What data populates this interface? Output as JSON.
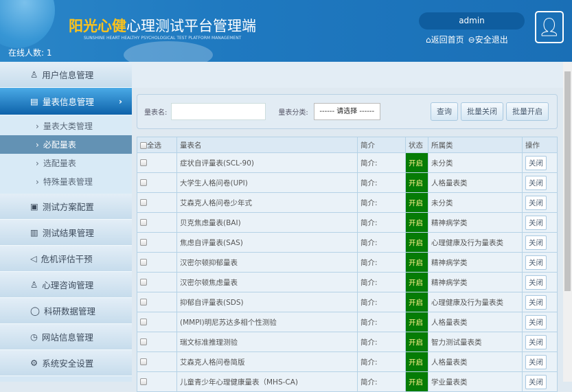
{
  "header": {
    "title_highlight": "阳光心健",
    "title_rest": "心理测试平台管理端",
    "subtitle": "SUNSHINE HEART HEALTHY PSYCHOLOGICAL TEST PLATFORM MANAGEMENT",
    "online_label": "在线人数:",
    "online_count": "1",
    "username": "admin",
    "home_link": "返回首页",
    "logout_link": "安全退出"
  },
  "sidebar": {
    "items": [
      {
        "label": "用户信息管理",
        "icon": "user-icon"
      },
      {
        "label": "量表信息管理",
        "icon": "form-icon"
      },
      {
        "label": "测试方案配置",
        "icon": "book-icon"
      },
      {
        "label": "测试结果管理",
        "icon": "columns-icon"
      },
      {
        "label": "危机评估干预",
        "icon": "speaker-icon"
      },
      {
        "label": "心理咨询管理",
        "icon": "user-icon"
      },
      {
        "label": "科研数据管理",
        "icon": "chat-icon"
      },
      {
        "label": "网站信息管理",
        "icon": "clock-icon"
      },
      {
        "label": "系统安全设置",
        "icon": "gear-icon"
      }
    ],
    "subitems": [
      "量表大类管理",
      "必配量表",
      "选配量表",
      "特殊量表管理"
    ]
  },
  "filter": {
    "name_label": "量表名:",
    "name_value": "",
    "category_label": "量表分类:",
    "category_value": "------ 请选择 ------",
    "query": "查询",
    "batch_close": "批量关闭",
    "batch_open": "批量开启"
  },
  "table": {
    "headers": [
      "全选",
      "量表名",
      "简介",
      "状态",
      "所属类",
      "操作"
    ],
    "rows": [
      {
        "name": "症状自评量表(SCL-90)",
        "intro": "简介:",
        "status": "开启",
        "category": "未分类",
        "action": "关闭"
      },
      {
        "name": "大学生人格问卷(UPI)",
        "intro": "简介:",
        "status": "开启",
        "category": "人格量表类",
        "action": "关闭"
      },
      {
        "name": "艾森克人格问卷少年式",
        "intro": "简介:",
        "status": "开启",
        "category": "未分类",
        "action": "关闭"
      },
      {
        "name": "贝克焦虑量表(BAI)",
        "intro": "简介:",
        "status": "开启",
        "category": "精神病学类",
        "action": "关闭"
      },
      {
        "name": "焦虑自评量表(SAS)",
        "intro": "简介:",
        "status": "开启",
        "category": "心理健康及行为量表类",
        "action": "关闭"
      },
      {
        "name": "汉密尔顿抑郁量表",
        "intro": "简介:",
        "status": "开启",
        "category": "精神病学类",
        "action": "关闭"
      },
      {
        "name": "汉密尔顿焦虑量表",
        "intro": "简介:",
        "status": "开启",
        "category": "精神病学类",
        "action": "关闭"
      },
      {
        "name": "抑郁自评量表(SDS)",
        "intro": "简介:",
        "status": "开启",
        "category": "心理健康及行为量表类",
        "action": "关闭"
      },
      {
        "name": "(MMPI)明尼苏达多相个性测验",
        "intro": "简介:",
        "status": "开启",
        "category": "人格量表类",
        "action": "关闭"
      },
      {
        "name": "瑞文标准推理测验",
        "intro": "简介:",
        "status": "开启",
        "category": "智力测试量表类",
        "action": "关闭"
      },
      {
        "name": "艾森克人格问卷简版",
        "intro": "简介:",
        "status": "开启",
        "category": "人格量表类",
        "action": "关闭"
      },
      {
        "name": "儿童青少年心理健康量表（MHS-CA)",
        "intro": "简介:",
        "status": "开启",
        "category": "学业量表类",
        "action": "关闭"
      }
    ]
  },
  "colors": {
    "status_open": "#067c06",
    "header_blue": "#1f79c0",
    "title_yellow": "#fdc31b"
  }
}
